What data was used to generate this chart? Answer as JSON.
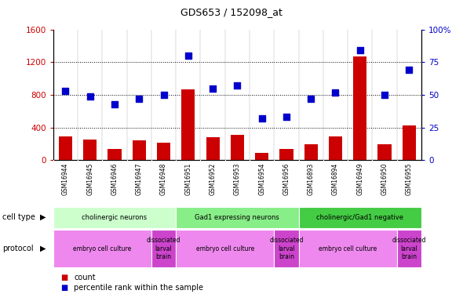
{
  "title": "GDS653 / 152098_at",
  "samples": [
    "GSM16944",
    "GSM16945",
    "GSM16946",
    "GSM16947",
    "GSM16948",
    "GSM16951",
    "GSM16952",
    "GSM16953",
    "GSM16954",
    "GSM16956",
    "GSM16893",
    "GSM16894",
    "GSM16949",
    "GSM16950",
    "GSM16955"
  ],
  "counts": [
    290,
    255,
    140,
    245,
    210,
    870,
    280,
    310,
    90,
    140,
    200,
    290,
    1270,
    195,
    430
  ],
  "percentiles": [
    53,
    49,
    43,
    47,
    50,
    80,
    55,
    57,
    32,
    33,
    47,
    52,
    84,
    50,
    69
  ],
  "bar_color": "#cc0000",
  "dot_color": "#0000cc",
  "ylim_left": [
    0,
    1600
  ],
  "ylim_right": [
    0,
    100
  ],
  "yticks_left": [
    0,
    400,
    800,
    1200,
    1600
  ],
  "yticks_right": [
    0,
    25,
    50,
    75,
    100
  ],
  "cell_type_groups": [
    {
      "label": "cholinergic neurons",
      "start": 0,
      "end": 4,
      "color": "#ccffcc"
    },
    {
      "label": "Gad1 expressing neurons",
      "start": 5,
      "end": 9,
      "color": "#88ee88"
    },
    {
      "label": "cholinergic/Gad1 negative",
      "start": 10,
      "end": 14,
      "color": "#44cc44"
    }
  ],
  "protocol_groups": [
    {
      "label": "embryo cell culture",
      "start": 0,
      "end": 3,
      "color": "#ee88ee"
    },
    {
      "label": "dissociated\nlarval\nbrain",
      "start": 4,
      "end": 4,
      "color": "#cc44cc"
    },
    {
      "label": "embryo cell culture",
      "start": 5,
      "end": 8,
      "color": "#ee88ee"
    },
    {
      "label": "dissociated\nlarval\nbrain",
      "start": 9,
      "end": 9,
      "color": "#cc44cc"
    },
    {
      "label": "embryo cell culture",
      "start": 10,
      "end": 13,
      "color": "#ee88ee"
    },
    {
      "label": "dissociated\nlarval\nbrain",
      "start": 14,
      "end": 14,
      "color": "#cc44cc"
    }
  ],
  "tick_label_color_left": "#cc0000",
  "tick_label_color_right": "#0000cc",
  "dot_size": 40,
  "bar_width": 0.55
}
